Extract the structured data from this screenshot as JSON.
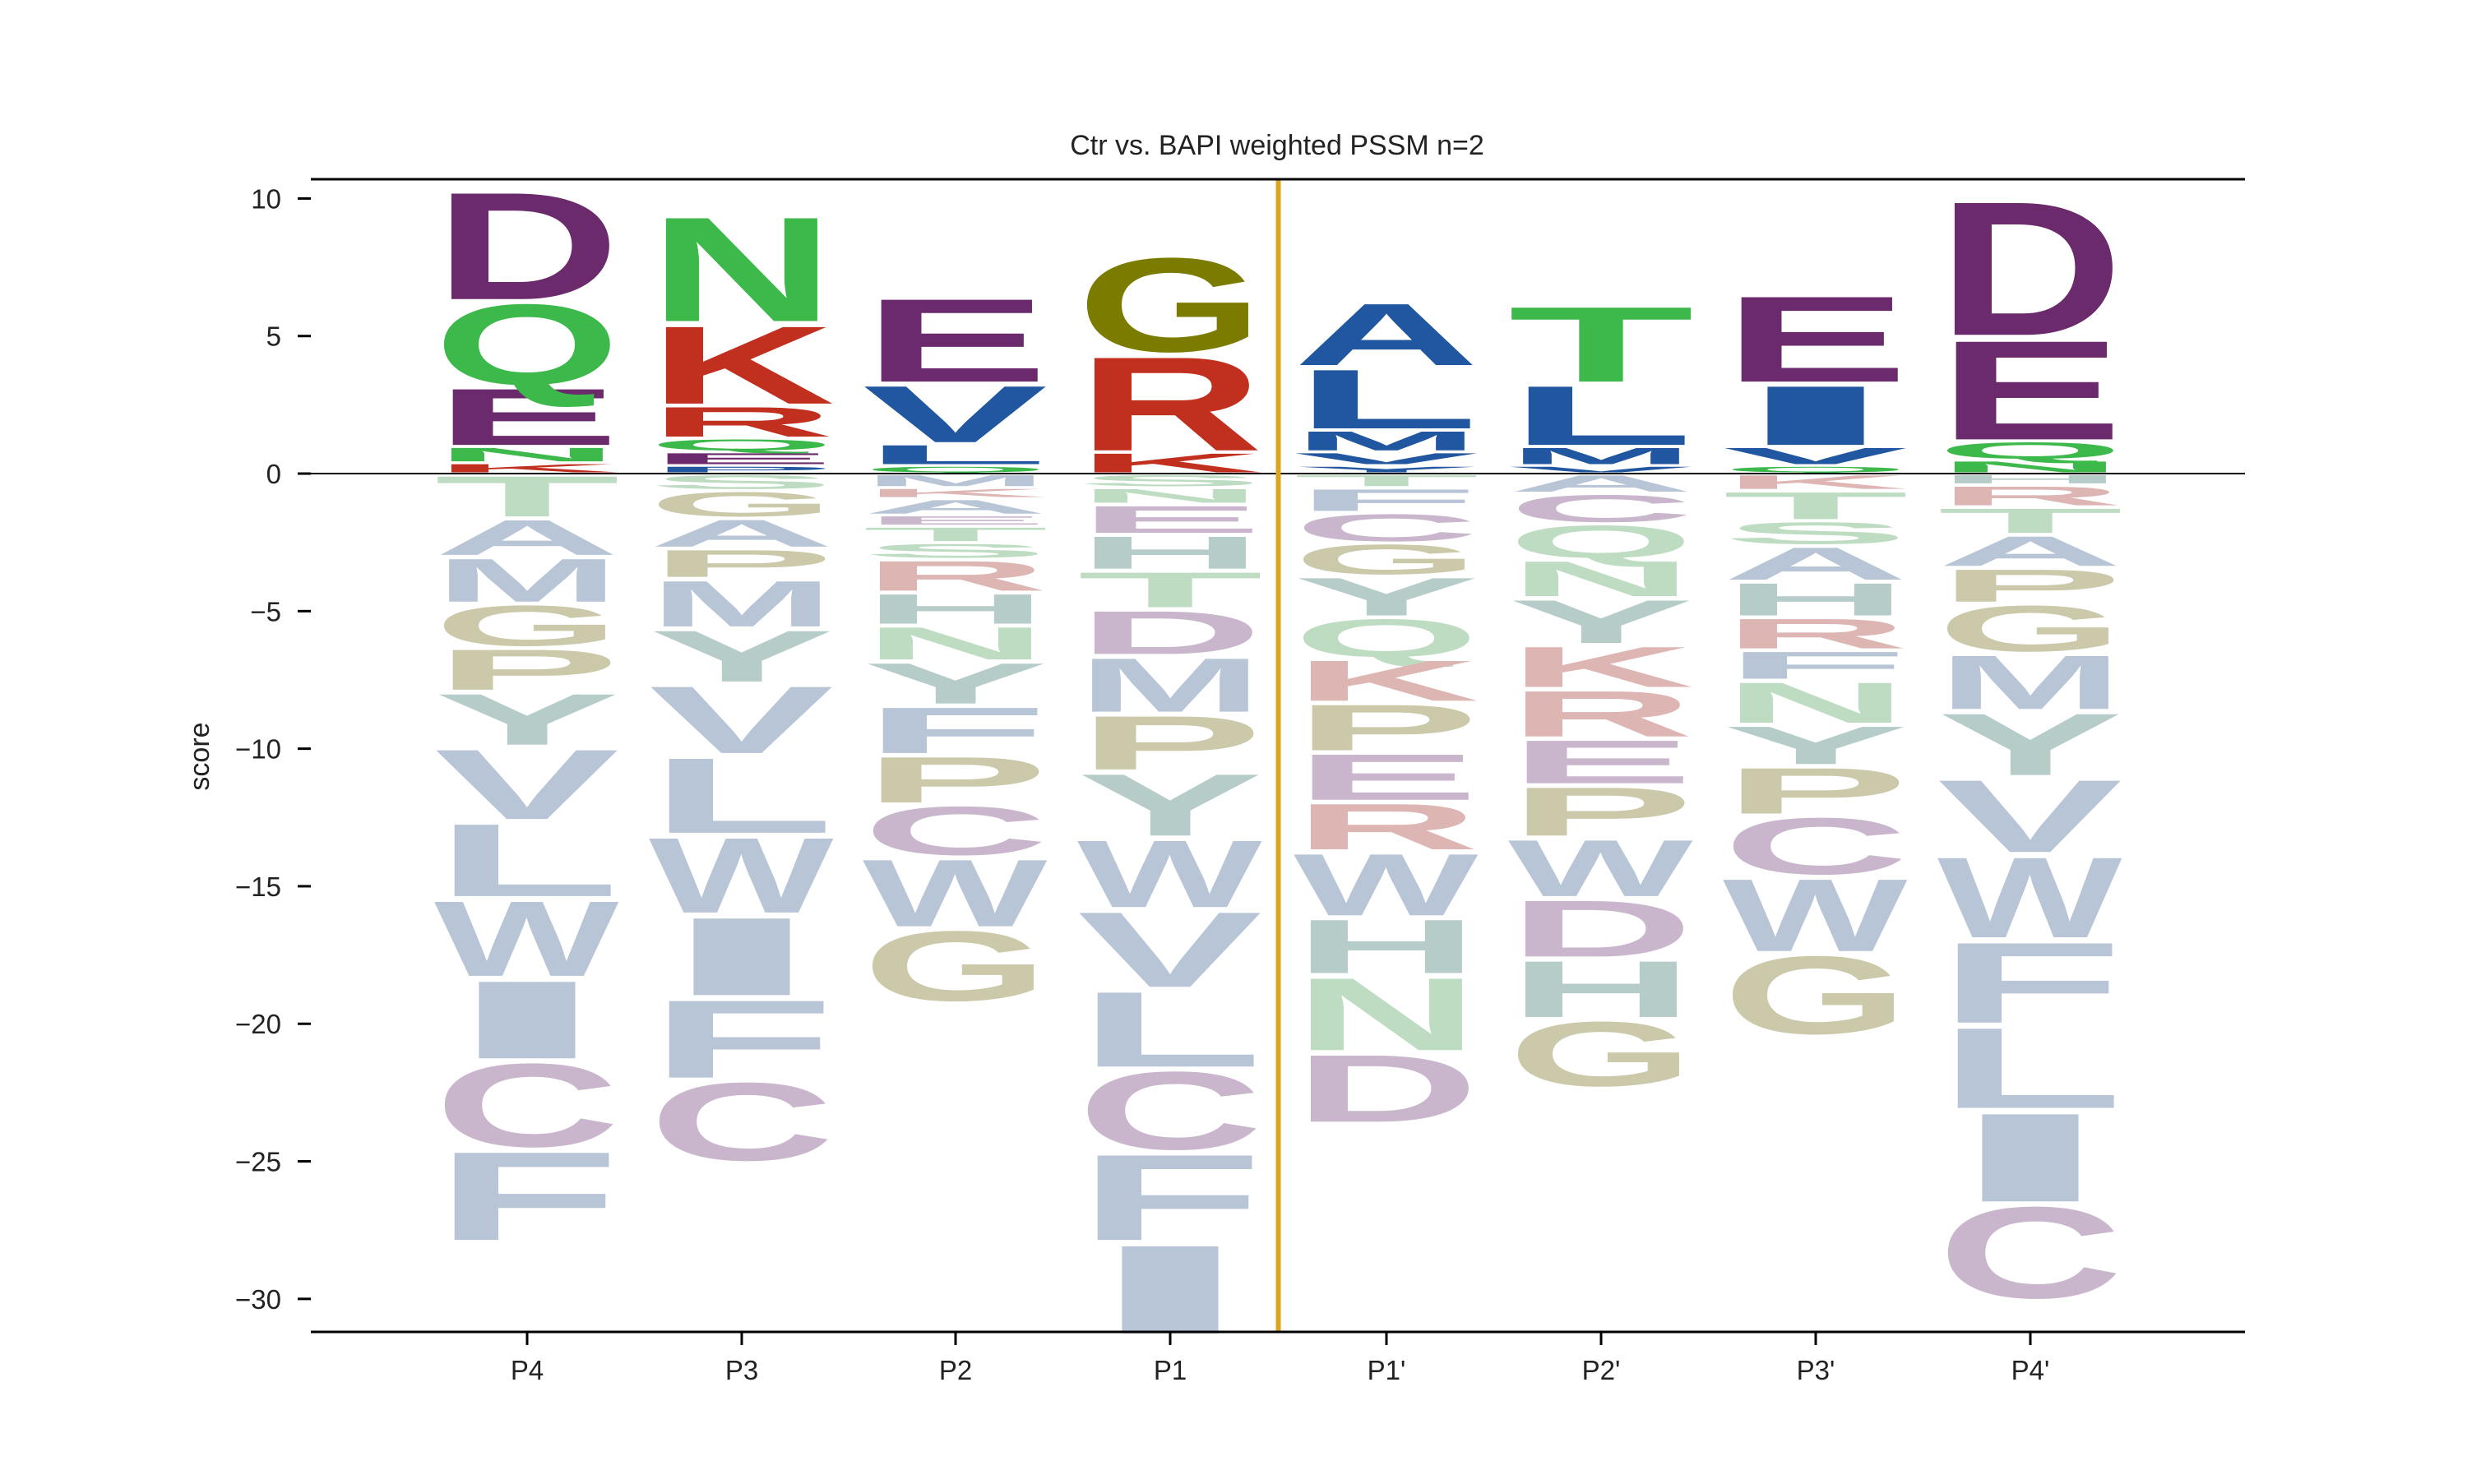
{
  "chart_data": {
    "type": "sequence-logo",
    "title": "Ctr vs. BAPI weighted PSSM n=2",
    "xlabel": "",
    "ylabel": "score",
    "ylim": [
      -31.2,
      10.7
    ],
    "yticks": [
      10,
      5,
      0,
      -5,
      -10,
      -15,
      -20,
      -25,
      -30
    ],
    "ytick_labels": [
      "10",
      "5",
      "0",
      "−5",
      "−10",
      "−15",
      "−20",
      "−25",
      "−30"
    ],
    "categories": [
      "P4",
      "P3",
      "P2",
      "P1",
      "P1'",
      "P2'",
      "P3'",
      "P4'"
    ],
    "divider_after_category_index": 3,
    "divider_color": "#DAA520",
    "palette": {
      "D": "#6B2A6B",
      "E": "#6B2A6B",
      "N": "#3CB94A",
      "Q": "#3CB94A",
      "S": "#3CB94A",
      "T": "#3CB94A",
      "K": "#C1301F",
      "R": "#C1301F",
      "H": "#C1301F",
      "A": "#2157A0",
      "V": "#2157A0",
      "L": "#2157A0",
      "I": "#2157A0",
      "M": "#2157A0",
      "F": "#2157A0",
      "W": "#2157A0",
      "Y": "#2157A0",
      "C": "#2157A0",
      "P": "#2157A0",
      "G": "#7B7B00"
    },
    "positive_opacity": 1.0,
    "negative_colors": {
      "D": "#C9B6CD",
      "E": "#C9B6CD",
      "N": "#BEDCC2",
      "Q": "#BEDCC2",
      "S": "#BEDCC2",
      "T": "#BEDCC2",
      "K": "#DDB5B3",
      "R": "#DDB5B3",
      "H": "#B5CCC8",
      "A": "#B8C5D6",
      "V": "#B8C5D6",
      "L": "#B8C5D6",
      "I": "#B8C5D6",
      "M": "#B8C5D6",
      "F": "#B8C5D6",
      "W": "#B8C5D6",
      "C": "#C9B6CD",
      "Y": "#B5CCC8",
      "P": "#CBC9AA",
      "G": "#CBC9AA"
    },
    "series": [
      {
        "position": "P4",
        "positive": [
          [
            "K",
            0.4
          ],
          [
            "N",
            0.6
          ],
          [
            "E",
            2.2
          ],
          [
            "Q",
            3.1
          ],
          [
            "D",
            4.1
          ]
        ],
        "negative": [
          [
            "T",
            1.6
          ],
          [
            "A",
            1.4
          ],
          [
            "M",
            1.7
          ],
          [
            "G",
            1.6
          ],
          [
            "P",
            1.6
          ],
          [
            "Y",
            2.0
          ],
          [
            "V",
            2.7
          ],
          [
            "L",
            2.8
          ],
          [
            "W",
            2.9
          ],
          [
            "I",
            3.0
          ],
          [
            "C",
            3.2
          ],
          [
            "F",
            3.4
          ]
        ]
      },
      {
        "position": "P3",
        "positive": [
          [
            "P",
            0.3
          ],
          [
            "E",
            0.5
          ],
          [
            "Q",
            0.5
          ],
          [
            "R",
            1.2
          ],
          [
            "K",
            3.0
          ],
          [
            "N",
            4.0
          ]
        ],
        "negative": [
          [
            "S",
            0.6
          ],
          [
            "G",
            1.0
          ],
          [
            "A",
            1.1
          ],
          [
            "P",
            1.1
          ],
          [
            "M",
            1.8
          ],
          [
            "Y",
            2.0
          ],
          [
            "V",
            2.6
          ],
          [
            "L",
            2.9
          ],
          [
            "W",
            2.9
          ],
          [
            "I",
            3.0
          ],
          [
            "F",
            3.0
          ],
          [
            "C",
            3.0
          ]
        ]
      },
      {
        "position": "P2",
        "positive": [
          [
            "Q",
            0.3
          ],
          [
            "L",
            0.8
          ],
          [
            "V",
            2.2
          ],
          [
            "E",
            3.2
          ]
        ],
        "negative": [
          [
            "M",
            0.5
          ],
          [
            "K",
            0.4
          ],
          [
            "A",
            0.6
          ],
          [
            "E",
            0.4
          ],
          [
            "T",
            0.6
          ],
          [
            "S",
            0.6
          ],
          [
            "R",
            1.2
          ],
          [
            "H",
            1.2
          ],
          [
            "N",
            1.3
          ],
          [
            "Y",
            1.6
          ],
          [
            "F",
            1.8
          ],
          [
            "P",
            1.8
          ],
          [
            "C",
            1.9
          ],
          [
            "W",
            2.6
          ],
          [
            "G",
            2.7
          ]
        ]
      },
      {
        "position": "P1",
        "positive": [
          [
            "K",
            0.8
          ],
          [
            "R",
            3.6
          ],
          [
            "G",
            3.6
          ]
        ],
        "negative": [
          [
            "S",
            0.5
          ],
          [
            "N",
            0.6
          ],
          [
            "E",
            1.1
          ],
          [
            "H",
            1.3
          ],
          [
            "T",
            1.4
          ],
          [
            "D",
            1.7
          ],
          [
            "M",
            2.1
          ],
          [
            "P",
            2.1
          ],
          [
            "Y",
            2.4
          ],
          [
            "W",
            2.6
          ],
          [
            "V",
            2.9
          ],
          [
            "L",
            2.9
          ],
          [
            "C",
            3.0
          ],
          [
            "F",
            3.3
          ],
          [
            "I",
            3.4
          ]
        ]
      },
      {
        "position": "P1'",
        "positive": [
          [
            "Y",
            0.3
          ],
          [
            "V",
            0.5
          ],
          [
            "M",
            0.8
          ],
          [
            "L",
            2.3
          ],
          [
            "A",
            2.4
          ]
        ],
        "negative": [
          [
            "T",
            0.5
          ],
          [
            "F",
            0.9
          ],
          [
            "C",
            1.1
          ],
          [
            "G",
            1.2
          ],
          [
            "Y",
            1.5
          ],
          [
            "Q",
            1.5
          ],
          [
            "K",
            1.6
          ],
          [
            "P",
            1.8
          ],
          [
            "E",
            1.8
          ],
          [
            "R",
            1.8
          ],
          [
            "W",
            2.4
          ],
          [
            "H",
            2.1
          ],
          [
            "N",
            2.8
          ],
          [
            "D",
            2.6
          ]
        ]
      },
      {
        "position": "P2'",
        "positive": [
          [
            "V",
            0.3
          ],
          [
            "M",
            0.7
          ],
          [
            "L",
            2.3
          ],
          [
            "T",
            2.9
          ]
        ],
        "negative": [
          [
            "A",
            0.7
          ],
          [
            "C",
            1.1
          ],
          [
            "Q",
            1.3
          ],
          [
            "N",
            1.4
          ],
          [
            "Y",
            1.7
          ],
          [
            "K",
            1.6
          ],
          [
            "R",
            1.8
          ],
          [
            "E",
            1.7
          ],
          [
            "P",
            1.9
          ],
          [
            "W",
            2.2
          ],
          [
            "D",
            2.2
          ],
          [
            "H",
            2.2
          ],
          [
            "G",
            2.5
          ]
        ]
      },
      {
        "position": "P3'",
        "positive": [
          [
            "Q",
            0.3
          ],
          [
            "V",
            0.7
          ],
          [
            "I",
            2.3
          ],
          [
            "E",
            3.3
          ]
        ],
        "negative": [
          [
            "K",
            0.6
          ],
          [
            "T",
            1.1
          ],
          [
            "S",
            0.9
          ],
          [
            "A",
            1.3
          ],
          [
            "H",
            1.3
          ],
          [
            "R",
            1.2
          ],
          [
            "F",
            1.1
          ],
          [
            "N",
            1.6
          ],
          [
            "Y",
            1.5
          ],
          [
            "P",
            1.8
          ],
          [
            "C",
            2.2
          ],
          [
            "W",
            2.8
          ],
          [
            "G",
            3.0
          ]
        ]
      },
      {
        "position": "P4'",
        "positive": [
          [
            "N",
            0.5
          ],
          [
            "Q",
            0.7
          ],
          [
            "E",
            3.8
          ],
          [
            "D",
            5.1
          ]
        ],
        "negative": [
          [
            "H",
            0.4
          ],
          [
            "R",
            0.8
          ],
          [
            "T",
            1.0
          ],
          [
            "A",
            1.2
          ],
          [
            "P",
            1.3
          ],
          [
            "G",
            1.8
          ],
          [
            "M",
            2.1
          ],
          [
            "Y",
            2.4
          ],
          [
            "V",
            2.8
          ],
          [
            "W",
            3.1
          ],
          [
            "F",
            3.1
          ],
          [
            "L",
            3.1
          ],
          [
            "I",
            3.4
          ],
          [
            "C",
            3.5
          ]
        ]
      }
    ]
  }
}
